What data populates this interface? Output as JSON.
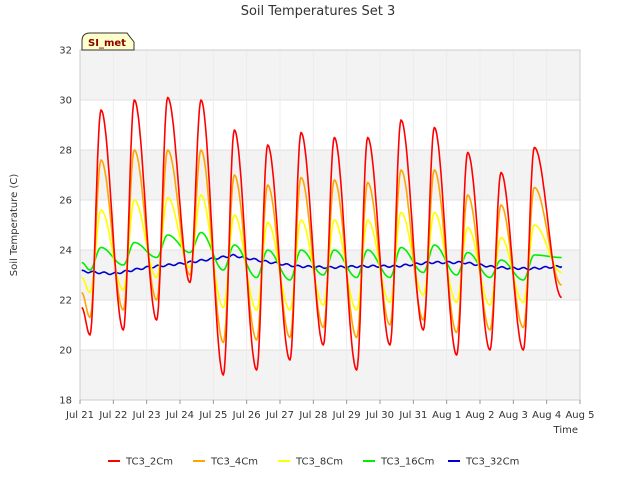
{
  "chart_data": {
    "type": "line",
    "title": "Soil Temperatures Set 3",
    "xlabel": "Time",
    "ylabel": "Soil Temperature (C)",
    "station_label": "SI_met",
    "ylim": [
      18,
      32
    ],
    "y_ticks": [
      18,
      20,
      22,
      24,
      26,
      28,
      30,
      32
    ],
    "xlim_days": [
      0,
      15
    ],
    "x_ticks": [
      {
        "day": 0,
        "label": "Jul 21"
      },
      {
        "day": 1,
        "label": "Jul 22"
      },
      {
        "day": 2,
        "label": "Jul 23"
      },
      {
        "day": 3,
        "label": "Jul 24"
      },
      {
        "day": 4,
        "label": "Jul 25"
      },
      {
        "day": 5,
        "label": "Jul 26"
      },
      {
        "day": 6,
        "label": "Jul 27"
      },
      {
        "day": 7,
        "label": "Jul 28"
      },
      {
        "day": 8,
        "label": "Jul 29"
      },
      {
        "day": 9,
        "label": "Jul 30"
      },
      {
        "day": 10,
        "label": "Jul 31"
      },
      {
        "day": 11,
        "label": "Aug 1"
      },
      {
        "day": 12,
        "label": "Aug 2"
      },
      {
        "day": 13,
        "label": "Aug 3"
      },
      {
        "day": 14,
        "label": "Aug 4"
      },
      {
        "day": 15,
        "label": "Aug 5"
      }
    ],
    "grid": true,
    "background_bands": "alternating gray",
    "legend_position": "bottom",
    "days_meta": {
      "start_day": 0.05,
      "end_day": 14.45
    },
    "daily_extremes": [
      {
        "day": "Jul 21",
        "TC3_2Cm_max": 29.6,
        "TC3_2Cm_min": 20.6,
        "TC3_4Cm_max": 27.6,
        "TC3_4Cm_min": 21.3,
        "TC3_8Cm_max": 25.6,
        "TC3_8Cm_min": 22.3,
        "TC3_16Cm_max": 24.1,
        "TC3_16Cm_min": 23.2
      },
      {
        "day": "Jul 22",
        "TC3_2Cm_max": 30.0,
        "TC3_2Cm_min": 20.8,
        "TC3_4Cm_max": 28.0,
        "TC3_4Cm_min": 21.6,
        "TC3_8Cm_max": 26.0,
        "TC3_8Cm_min": 22.4,
        "TC3_16Cm_max": 24.3,
        "TC3_16Cm_min": 23.4
      },
      {
        "day": "Jul 23",
        "TC3_2Cm_max": 30.1,
        "TC3_2Cm_min": 21.2,
        "TC3_4Cm_max": 28.0,
        "TC3_4Cm_min": 22.0,
        "TC3_8Cm_max": 26.1,
        "TC3_8Cm_min": 22.9,
        "TC3_16Cm_max": 24.6,
        "TC3_16Cm_min": 23.7
      },
      {
        "day": "Jul 24",
        "TC3_2Cm_max": 30.0,
        "TC3_2Cm_min": 22.7,
        "TC3_4Cm_max": 28.0,
        "TC3_4Cm_min": 23.0,
        "TC3_8Cm_max": 26.2,
        "TC3_8Cm_min": 23.3,
        "TC3_16Cm_max": 24.7,
        "TC3_16Cm_min": 23.9
      },
      {
        "day": "Jul 25",
        "TC3_2Cm_max": 28.8,
        "TC3_2Cm_min": 19.0,
        "TC3_4Cm_max": 27.0,
        "TC3_4Cm_min": 20.3,
        "TC3_8Cm_max": 25.4,
        "TC3_8Cm_min": 21.7,
        "TC3_16Cm_max": 24.2,
        "TC3_16Cm_min": 23.2
      },
      {
        "day": "Jul 26",
        "TC3_2Cm_max": 28.2,
        "TC3_2Cm_min": 19.2,
        "TC3_4Cm_max": 26.6,
        "TC3_4Cm_min": 20.4,
        "TC3_8Cm_max": 25.1,
        "TC3_8Cm_min": 21.6,
        "TC3_16Cm_max": 24.0,
        "TC3_16Cm_min": 22.9
      },
      {
        "day": "Jul 27",
        "TC3_2Cm_max": 28.7,
        "TC3_2Cm_min": 19.6,
        "TC3_4Cm_max": 26.9,
        "TC3_4Cm_min": 20.5,
        "TC3_8Cm_max": 25.2,
        "TC3_8Cm_min": 21.6,
        "TC3_16Cm_max": 24.0,
        "TC3_16Cm_min": 22.8
      },
      {
        "day": "Jul 28",
        "TC3_2Cm_max": 28.5,
        "TC3_2Cm_min": 20.2,
        "TC3_4Cm_max": 26.8,
        "TC3_4Cm_min": 20.9,
        "TC3_8Cm_max": 25.2,
        "TC3_8Cm_min": 21.8,
        "TC3_16Cm_max": 24.0,
        "TC3_16Cm_min": 23.0
      },
      {
        "day": "Jul 29",
        "TC3_2Cm_max": 28.5,
        "TC3_2Cm_min": 19.2,
        "TC3_4Cm_max": 26.7,
        "TC3_4Cm_min": 20.5,
        "TC3_8Cm_max": 25.2,
        "TC3_8Cm_min": 21.6,
        "TC3_16Cm_max": 24.0,
        "TC3_16Cm_min": 22.9
      },
      {
        "day": "Jul 30",
        "TC3_2Cm_max": 29.2,
        "TC3_2Cm_min": 20.2,
        "TC3_4Cm_max": 27.2,
        "TC3_4Cm_min": 21.0,
        "TC3_8Cm_max": 25.5,
        "TC3_8Cm_min": 21.9,
        "TC3_16Cm_max": 24.1,
        "TC3_16Cm_min": 22.9
      },
      {
        "day": "Jul 31",
        "TC3_2Cm_max": 28.9,
        "TC3_2Cm_min": 20.8,
        "TC3_4Cm_max": 27.2,
        "TC3_4Cm_min": 21.2,
        "TC3_8Cm_max": 25.5,
        "TC3_8Cm_min": 22.2,
        "TC3_16Cm_max": 24.2,
        "TC3_16Cm_min": 23.1
      },
      {
        "day": "Aug 1",
        "TC3_2Cm_max": 27.9,
        "TC3_2Cm_min": 19.8,
        "TC3_4Cm_max": 26.2,
        "TC3_4Cm_min": 20.7,
        "TC3_8Cm_max": 24.9,
        "TC3_8Cm_min": 21.9,
        "TC3_16Cm_max": 23.9,
        "TC3_16Cm_min": 23.0
      },
      {
        "day": "Aug 2",
        "TC3_2Cm_max": 27.1,
        "TC3_2Cm_min": 20.0,
        "TC3_4Cm_max": 25.8,
        "TC3_4Cm_min": 20.8,
        "TC3_8Cm_max": 24.5,
        "TC3_8Cm_min": 21.8,
        "TC3_16Cm_max": 23.6,
        "TC3_16Cm_min": 22.9
      },
      {
        "day": "Aug 3",
        "TC3_2Cm_max": 28.1,
        "TC3_2Cm_min": 20.0,
        "TC3_4Cm_max": 26.5,
        "TC3_4Cm_min": 20.9,
        "TC3_8Cm_max": 25.0,
        "TC3_8Cm_min": 21.9,
        "TC3_16Cm_max": 23.8,
        "TC3_16Cm_min": 22.8
      }
    ],
    "series": [
      {
        "name": "TC3_2Cm",
        "color": "#ff0000",
        "field": "TC3_2Cm",
        "start": 21.7,
        "end": 22.1
      },
      {
        "name": "TC3_4Cm",
        "color": "#ffa500",
        "field": "TC3_4Cm",
        "start": 22.3,
        "end": 22.6
      },
      {
        "name": "TC3_8Cm",
        "color": "#ffff00",
        "field": "TC3_8Cm",
        "start": 22.9,
        "end": 23.1
      },
      {
        "name": "TC3_16Cm",
        "color": "#00ee00",
        "field": "TC3_16Cm",
        "start": 23.5,
        "end": 23.7
      },
      {
        "name": "TC3_32Cm",
        "color": "#0000cd",
        "field": null,
        "trend": [
          {
            "day": 0.05,
            "value": 23.15
          },
          {
            "day": 1.0,
            "value": 23.05
          },
          {
            "day": 2.0,
            "value": 23.3
          },
          {
            "day": 3.0,
            "value": 23.45
          },
          {
            "day": 4.0,
            "value": 23.65
          },
          {
            "day": 4.6,
            "value": 23.78
          },
          {
            "day": 5.5,
            "value": 23.55
          },
          {
            "day": 6.5,
            "value": 23.35
          },
          {
            "day": 7.5,
            "value": 23.3
          },
          {
            "day": 8.5,
            "value": 23.35
          },
          {
            "day": 9.5,
            "value": 23.35
          },
          {
            "day": 10.5,
            "value": 23.5
          },
          {
            "day": 11.5,
            "value": 23.5
          },
          {
            "day": 12.5,
            "value": 23.3
          },
          {
            "day": 13.5,
            "value": 23.25
          },
          {
            "day": 14.45,
            "value": 23.35
          }
        ]
      }
    ]
  }
}
